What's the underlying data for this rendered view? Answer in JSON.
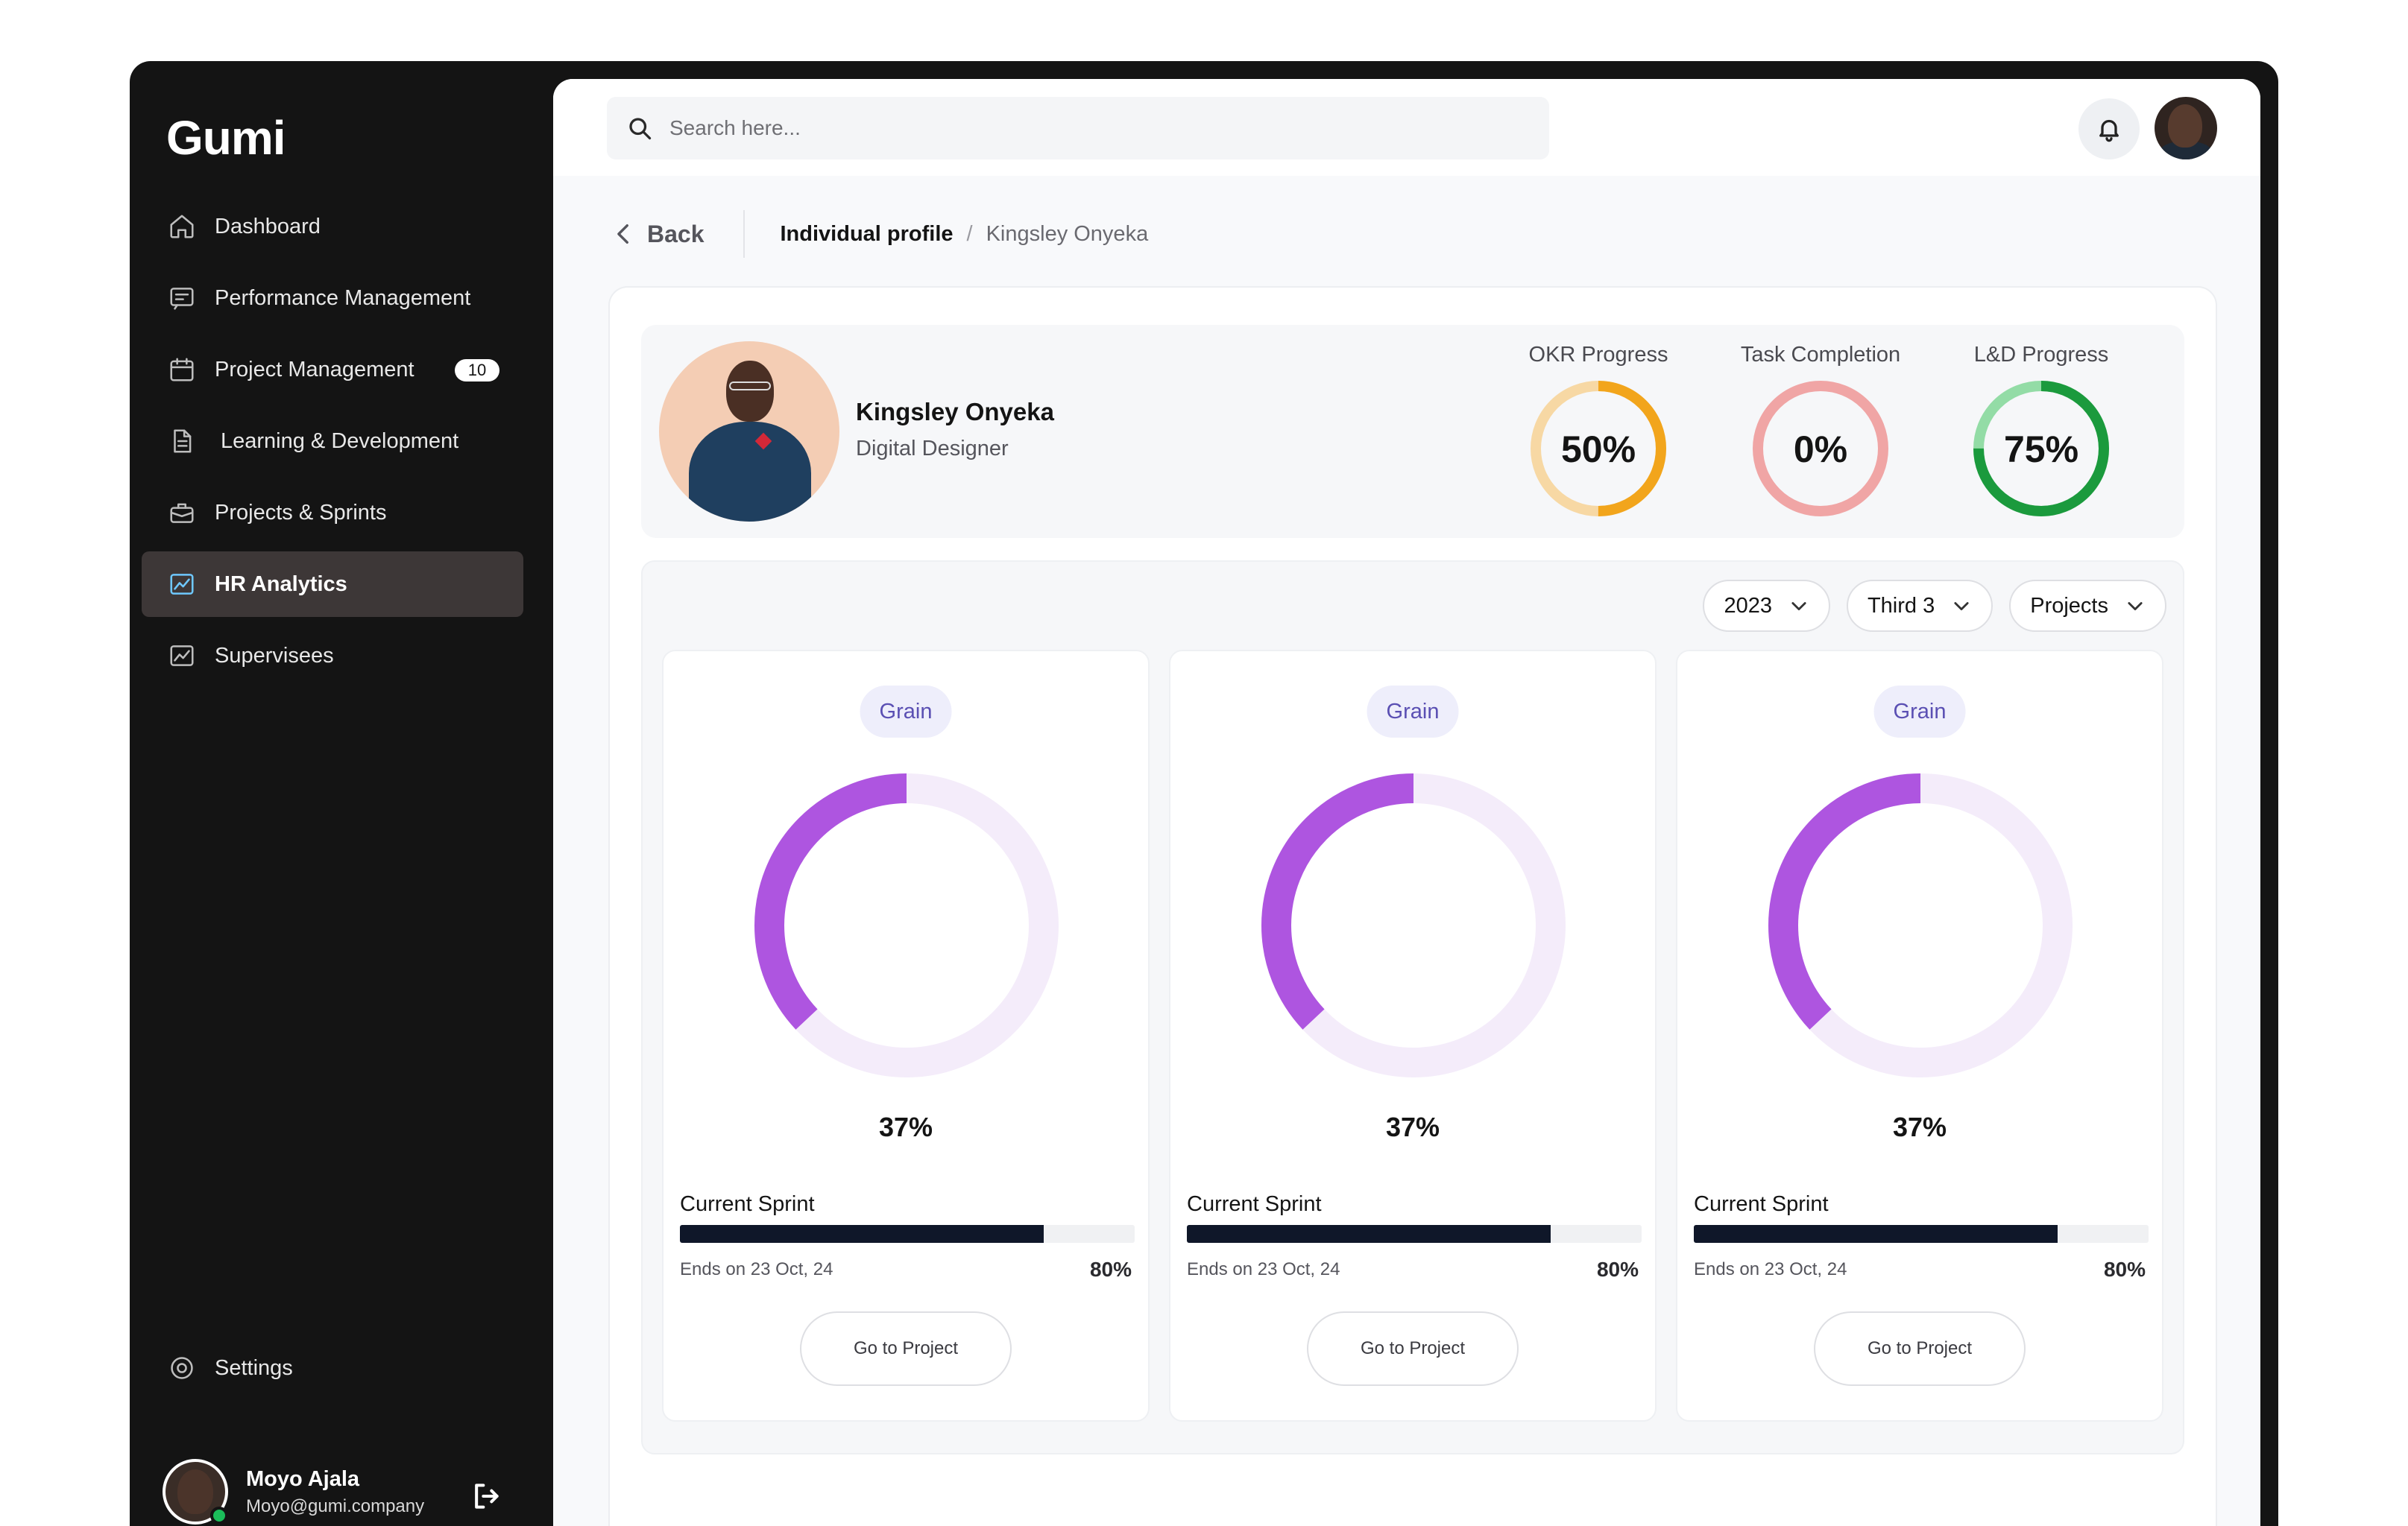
{
  "app": {
    "logo": "Gumi"
  },
  "sidebar": {
    "items": [
      {
        "label": "Dashboard",
        "icon": "home-icon"
      },
      {
        "label": "Performance Management",
        "icon": "message-icon"
      },
      {
        "label": "Project Management",
        "icon": "calendar-icon",
        "badge": "10"
      },
      {
        "label": "Learning & Development",
        "icon": "document-icon"
      },
      {
        "label": "Projects & Sprints",
        "icon": "briefcase-icon"
      },
      {
        "label": "HR Analytics",
        "icon": "chart-icon",
        "active": true
      },
      {
        "label": "Supervisees",
        "icon": "chart-icon"
      }
    ],
    "settings_label": "Settings",
    "user": {
      "name": "Moyo Ajala",
      "email": "Moyo@gumi.company",
      "status": "online"
    }
  },
  "topbar": {
    "search_placeholder": "Search here..."
  },
  "breadcrumb": {
    "back": "Back",
    "section": "Individual profile",
    "current": "Kingsley Onyeka"
  },
  "profile": {
    "name": "Kingsley Onyeka",
    "role": "Digital Designer",
    "metrics": [
      {
        "label": "OKR Progress",
        "value": "50%",
        "fraction": 0.5,
        "color": "#f2a51c",
        "track": "#f7d8a4"
      },
      {
        "label": "Task Completion",
        "value": "0%",
        "fraction": 0.0,
        "color": "#e89a9a",
        "track": "#f0a5a5"
      },
      {
        "label": "L&D Progress",
        "value": "75%",
        "fraction": 0.75,
        "color": "#1b9a3d",
        "track": "#93dca6"
      }
    ]
  },
  "filters": {
    "year": "2023",
    "period": "Third 3",
    "type": "Projects"
  },
  "projects": [
    {
      "tag": "Grain",
      "donut_percent": "37%",
      "donut_fraction": 0.37,
      "sprint_label": "Current Sprint",
      "sprint_fraction": 0.8,
      "sprint_percent": "80%",
      "ends": "Ends on 23 Oct, 24",
      "button": "Go to Project"
    },
    {
      "tag": "Grain",
      "donut_percent": "37%",
      "donut_fraction": 0.37,
      "sprint_label": "Current Sprint",
      "sprint_fraction": 0.8,
      "sprint_percent": "80%",
      "ends": "Ends on 23 Oct, 24",
      "button": "Go to Project"
    },
    {
      "tag": "Grain",
      "donut_percent": "37%",
      "donut_fraction": 0.37,
      "sprint_label": "Current Sprint",
      "sprint_fraction": 0.8,
      "sprint_percent": "80%",
      "ends": "Ends on 23 Oct, 24",
      "button": "Go to Project"
    }
  ],
  "colors": {
    "donut": "#ae55e0",
    "donut_track": "#f4ecfa",
    "sidebar_bg": "#141414",
    "active_item": "#3d3737"
  }
}
